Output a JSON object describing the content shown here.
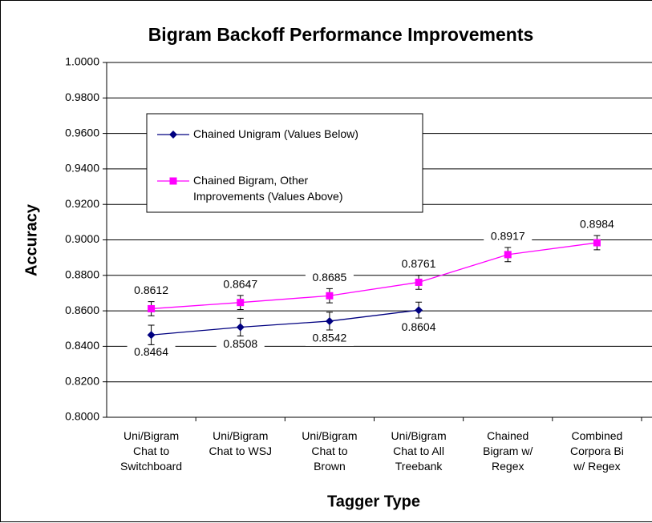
{
  "chart_data": {
    "type": "line",
    "title": "Bigram Backoff Performance Improvements",
    "x_label": "Tagger Type",
    "y_label": "Accuracy",
    "categories": [
      "Uni/Bigram Chat to Switchboard",
      "Uni/Bigram Chat to WSJ",
      "Uni/Bigram Chat to Brown",
      "Uni/Bigram Chat to All Treebank",
      "Chained Bigram w/ Regex",
      "Combined Corpora Bi w/ Regex"
    ],
    "series": [
      {
        "name": "Chained Unigram (Values Below)",
        "color": "#000080",
        "marker": "diamond",
        "label_position": "below",
        "values": [
          0.8464,
          0.8508,
          0.8542,
          0.8604,
          null,
          null
        ],
        "errors": [
          0.0055,
          0.005,
          0.005,
          0.0045,
          null,
          null
        ]
      },
      {
        "name": "Chained Bigram, Other Improvements (Values Above)",
        "color": "#ff00ff",
        "marker": "square",
        "label_position": "above",
        "values": [
          0.8612,
          0.8647,
          0.8685,
          0.8761,
          0.8917,
          0.8984
        ],
        "errors": [
          0.004,
          0.004,
          0.004,
          0.004,
          0.004,
          0.004
        ]
      }
    ],
    "ylim": [
      0.8,
      1.0
    ],
    "yticks": [
      {
        "value": 0.8,
        "label": "0.8000"
      },
      {
        "value": 0.82,
        "label": "0.8200"
      },
      {
        "value": 0.84,
        "label": "0.8400"
      },
      {
        "value": 0.86,
        "label": "0.8600"
      },
      {
        "value": 0.88,
        "label": "0.8800"
      },
      {
        "value": 0.9,
        "label": "0.9000"
      },
      {
        "value": 0.92,
        "label": "0.9200"
      },
      {
        "value": 0.94,
        "label": "0.9400"
      },
      {
        "value": 0.96,
        "label": "0.9600"
      },
      {
        "value": 0.98,
        "label": "0.9800"
      },
      {
        "value": 1.0,
        "label": "1.0000"
      }
    ],
    "grid": true,
    "legend": "upper left"
  }
}
